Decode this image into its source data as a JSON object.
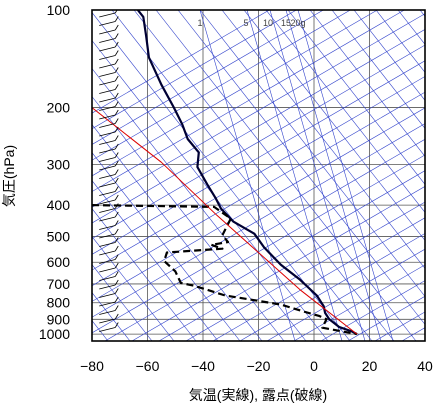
{
  "chart_data": {
    "type": "line",
    "title": "",
    "xlabel": "気温(実線), 露点(破線)",
    "ylabel": "気圧(hPa)",
    "xlim": [
      -80,
      40
    ],
    "ylim": [
      1050,
      100
    ],
    "y_scale": "log",
    "grid": true,
    "x_ticks": [
      -80,
      -60,
      -40,
      -20,
      0,
      20,
      40
    ],
    "y_ticks": [
      100,
      200,
      300,
      400,
      500,
      600,
      700,
      800,
      900,
      1000
    ],
    "mixing_ratio_labels": [
      "1",
      "5",
      "10",
      "15",
      "20g"
    ],
    "series": [
      {
        "line_style": "solid",
        "color": "#000033",
        "points": [
          [
            -63.5,
            100
          ],
          [
            -61.5,
            105
          ],
          [
            -60.5,
            120
          ],
          [
            -59.5,
            140
          ],
          [
            -55,
            170
          ],
          [
            -50.5,
            200
          ],
          [
            -47.5,
            225
          ],
          [
            -45.5,
            250
          ],
          [
            -41.5,
            275
          ],
          [
            -42,
            305
          ],
          [
            -38.5,
            345
          ],
          [
            -35.5,
            380
          ],
          [
            -33.5,
            410
          ],
          [
            -29,
            450
          ],
          [
            -21.5,
            490
          ],
          [
            -18,
            540
          ],
          [
            -12,
            610
          ],
          [
            -5,
            680
          ],
          [
            1,
            760
          ],
          [
            3.5,
            820
          ],
          [
            4,
            860
          ],
          [
            5.5,
            900
          ],
          [
            9,
            950
          ],
          [
            13.5,
            980
          ],
          [
            15.5,
            1000
          ]
        ]
      },
      {
        "line_style": "dashed",
        "color": "#000000",
        "points": [
          [
            -80,
            400
          ],
          [
            -36,
            405
          ],
          [
            -30,
            440
          ],
          [
            -33,
            495
          ],
          [
            -31,
            520
          ],
          [
            -37,
            530
          ],
          [
            -33,
            545
          ],
          [
            -53,
            560
          ],
          [
            -54,
            595
          ],
          [
            -50,
            640
          ],
          [
            -48,
            695
          ],
          [
            -43,
            710
          ],
          [
            -32,
            760
          ],
          [
            -12,
            810
          ],
          [
            -4,
            850
          ],
          [
            2,
            880
          ],
          [
            4.5,
            900
          ],
          [
            3,
            955
          ],
          [
            15.5,
            1000
          ]
        ]
      },
      {
        "line_style": "solid",
        "color": "#dd0000",
        "points": [
          [
            -80,
            200
          ],
          [
            -55,
            295
          ],
          [
            -35,
            430
          ],
          [
            -5,
            730
          ],
          [
            15.5,
            1000
          ]
        ]
      }
    ],
    "wind_barbs_column_x": -74.5
  }
}
